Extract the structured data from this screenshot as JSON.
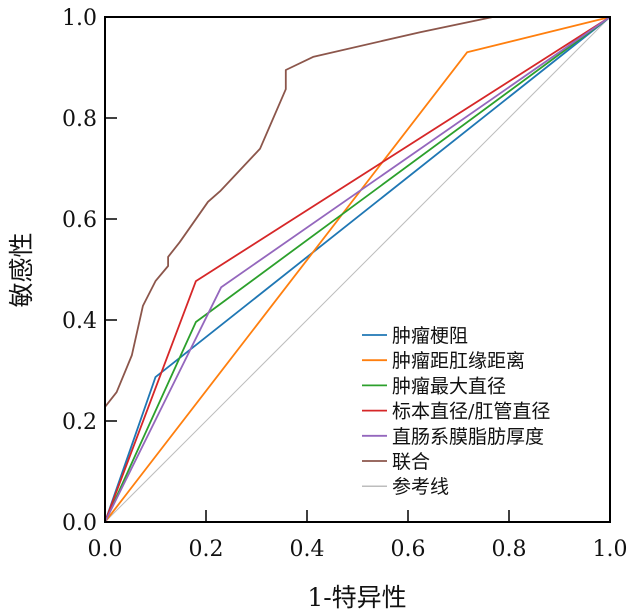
{
  "chart_data": {
    "type": "line",
    "title": "",
    "xlabel": "1-特异性",
    "ylabel": "敏感性",
    "xlim": [
      0,
      1
    ],
    "ylim": [
      0,
      1
    ],
    "xticks": [
      "0.0",
      "0.2",
      "0.4",
      "0.6",
      "0.8",
      "1.0"
    ],
    "yticks": [
      "0.0",
      "0.2",
      "0.4",
      "0.6",
      "0.8",
      "1.0"
    ],
    "grid": false,
    "legend_position": "bottom-right",
    "series": [
      {
        "name": "肿瘤梗阻",
        "color": "#1f77b4",
        "points": [
          [
            0,
            0
          ],
          [
            0.1,
            0.287
          ],
          [
            1,
            1
          ]
        ]
      },
      {
        "name": "肿瘤距肛缘距离",
        "color": "#ff7f0e",
        "points": [
          [
            0,
            0
          ],
          [
            0.717,
            0.93
          ],
          [
            1,
            1
          ]
        ]
      },
      {
        "name": "肿瘤最大直径",
        "color": "#2ca02c",
        "points": [
          [
            0,
            0
          ],
          [
            0.18,
            0.396
          ],
          [
            1,
            1
          ]
        ]
      },
      {
        "name": "标本直径/肛管直径",
        "color": "#d62728",
        "points": [
          [
            0,
            0
          ],
          [
            0.18,
            0.477
          ],
          [
            1,
            1
          ]
        ]
      },
      {
        "name": "直肠系膜脂肪厚度",
        "color": "#9467bd",
        "points": [
          [
            0,
            0
          ],
          [
            0.23,
            0.465
          ],
          [
            1,
            1
          ]
        ]
      },
      {
        "name": "联合",
        "color": "#8c564b",
        "points": [
          [
            0,
            0
          ],
          [
            0,
            0.228
          ],
          [
            0.023,
            0.257
          ],
          [
            0.053,
            0.33
          ],
          [
            0.075,
            0.428
          ],
          [
            0.1,
            0.477
          ],
          [
            0.125,
            0.507
          ],
          [
            0.125,
            0.525
          ],
          [
            0.148,
            0.554
          ],
          [
            0.204,
            0.634
          ],
          [
            0.228,
            0.655
          ],
          [
            0.307,
            0.739
          ],
          [
            0.358,
            0.857
          ],
          [
            0.358,
            0.895
          ],
          [
            0.412,
            0.921
          ],
          [
            0.624,
            0.97
          ],
          [
            0.768,
            1.0
          ],
          [
            1,
            1
          ]
        ]
      },
      {
        "name": "参考线",
        "color": "#bdbdbd",
        "points": [
          [
            0,
            0
          ],
          [
            1,
            1
          ]
        ]
      }
    ]
  }
}
